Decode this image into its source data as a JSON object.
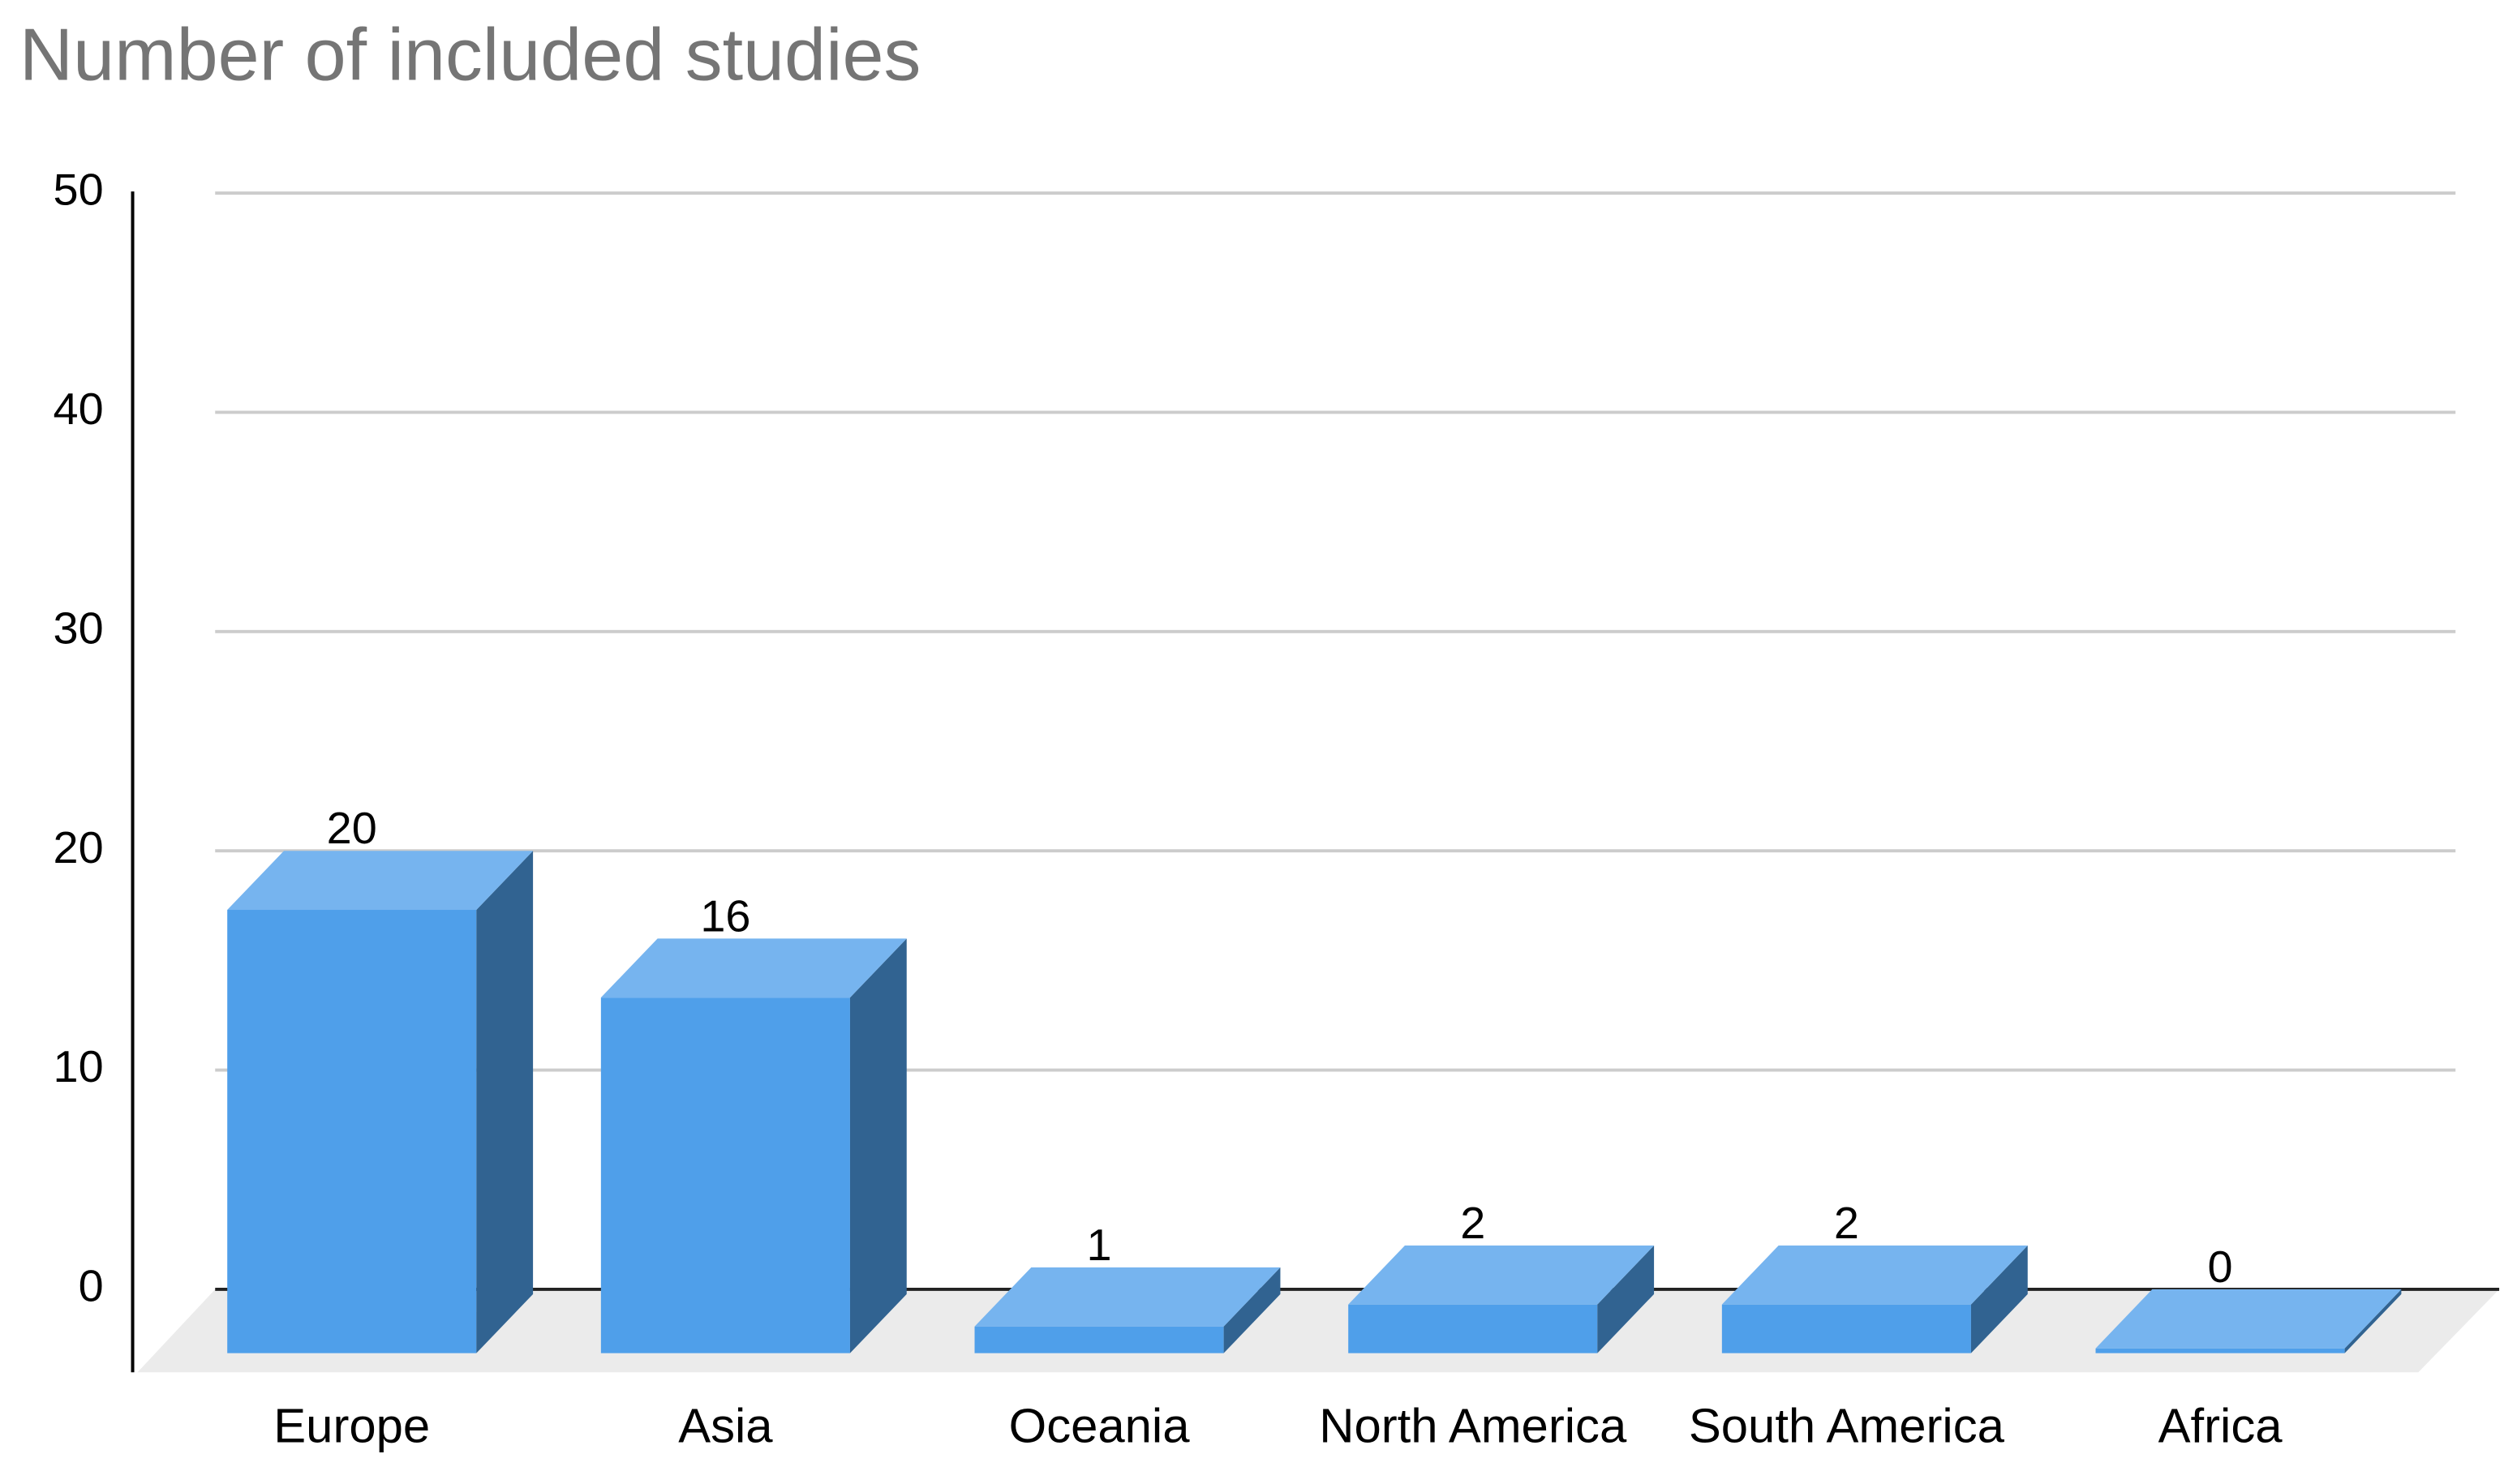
{
  "chart_data": {
    "type": "bar3d",
    "title": "Number of included studies",
    "categories": [
      "Europe",
      "Asia",
      "Oceania",
      "North America",
      "South America",
      "Africa"
    ],
    "values": [
      20,
      16,
      1,
      2,
      2,
      0
    ],
    "color": "#4f9fea",
    "ylim": [
      0,
      50
    ],
    "yticks": [
      0,
      10,
      20,
      30,
      40,
      50
    ],
    "grid": true
  }
}
